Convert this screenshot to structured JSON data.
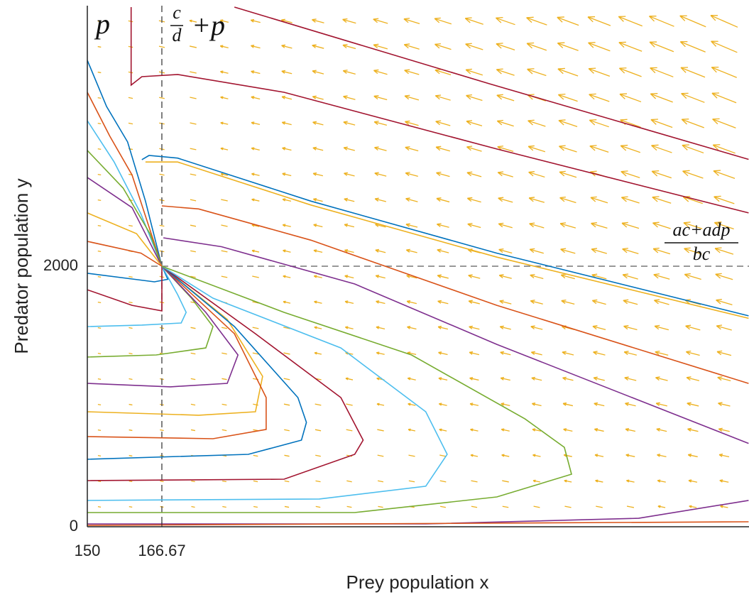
{
  "chart_data": {
    "type": "line",
    "x_label": "Prey population x",
    "y_label": "Predator population y",
    "xlim": [
      150,
      298
    ],
    "ylim": [
      0,
      4000
    ],
    "xticks": [
      150,
      166.67
    ],
    "yticks": [
      0,
      2000
    ],
    "annotations": {
      "p": "p",
      "prey_threshold": {
        "numerator": "c",
        "denominator": "d",
        "suffix": "+p"
      },
      "predator_threshold": {
        "numerator": "ac+adp",
        "denominator": "bc"
      }
    },
    "series": [
      {
        "color": "#A2142F",
        "x": [
          182.9,
          240,
          297.9
        ],
        "values": [
          3989,
          3400,
          2820
        ]
      },
      {
        "color": "#A2142F",
        "x": [
          159.8,
          159.8,
          162.2,
          170.2,
          194,
          241.6,
          297.9
        ],
        "values": [
          3989,
          3390,
          3455,
          3472,
          3335,
          2900,
          2409
        ]
      },
      {
        "color": "#0072BD",
        "x": [
          162.2,
          163.8,
          170.2,
          200,
          241.6,
          297.9
        ],
        "values": [
          2818,
          2850,
          2830,
          2500,
          2100,
          1619
        ]
      },
      {
        "color": "#EDB120",
        "x": [
          163,
          170.2,
          200,
          241.6,
          297.9
        ],
        "values": [
          2800,
          2800,
          2470,
          2070,
          1600
        ]
      },
      {
        "color": "#D95319",
        "x": [
          166.67,
          174.9,
          200,
          241.6,
          297.9
        ],
        "values": [
          2463,
          2440,
          2200,
          1700,
          1100
        ]
      },
      {
        "color": "#7E2F8E",
        "x": [
          167,
          180,
          209.8,
          241.6,
          297.9
        ],
        "values": [
          2218,
          2150,
          1864,
          1400,
          640
        ]
      },
      {
        "color": "#0072BD",
        "x": [
          150,
          154.3,
          159,
          163,
          166.67
        ],
        "values": [
          3581,
          3226,
          2954,
          2500,
          2000
        ]
      },
      {
        "color": "#D95319",
        "x": [
          150,
          155,
          160,
          166.67
        ],
        "values": [
          3335,
          3000,
          2700,
          2000
        ]
      },
      {
        "color": "#4DBEEE",
        "x": [
          150,
          156,
          162,
          166.67
        ],
        "values": [
          3117,
          2800,
          2400,
          2000
        ]
      },
      {
        "color": "#77AC30",
        "x": [
          150,
          158,
          164,
          166.67
        ],
        "values": [
          2889,
          2600,
          2250,
          2000
        ]
      },
      {
        "color": "#7E2F8E",
        "x": [
          150,
          160,
          166.67
        ],
        "values": [
          2681,
          2450,
          2000
        ]
      },
      {
        "color": "#EDB120",
        "x": [
          150,
          161,
          166.67
        ],
        "values": [
          2409,
          2250,
          2000
        ]
      },
      {
        "color": "#D95319",
        "x": [
          150,
          162,
          166.67
        ],
        "values": [
          2191,
          2100,
          2000
        ]
      },
      {
        "color": "#0072BD",
        "x": [
          150,
          165,
          168,
          166.67
        ],
        "values": [
          1946,
          1880,
          1900,
          2000
        ]
      },
      {
        "color": "#A2142F",
        "x": [
          150,
          160,
          166.67,
          166.67
        ],
        "values": [
          1819,
          1700,
          1657,
          2000
        ]
      },
      {
        "color": "#4DBEEE",
        "x": [
          150,
          162.2,
          171,
          172.1,
          170.2,
          166.67
        ],
        "values": [
          1537,
          1548,
          1564,
          1646,
          1782,
          2000
        ]
      },
      {
        "color": "#77AC30",
        "x": [
          150,
          165.4,
          176.5,
          178.1,
          173.3,
          166.67
        ],
        "values": [
          1303,
          1319,
          1373,
          1537,
          1755,
          2000
        ]
      },
      {
        "color": "#7E2F8E",
        "x": [
          150,
          168.6,
          181.3,
          183.7,
          176.5,
          166.67
        ],
        "values": [
          1101,
          1074,
          1101,
          1319,
          1646,
          2000
        ]
      },
      {
        "color": "#EDB120",
        "x": [
          150,
          174.9,
          187.6,
          189.2,
          181.3,
          166.67
        ],
        "values": [
          883,
          856,
          883,
          1155,
          1592,
          2000
        ]
      },
      {
        "color": "#D95319",
        "x": [
          150,
          178.1,
          190,
          190,
          182.9,
          166.67
        ],
        "values": [
          692,
          676,
          747,
          992,
          1482,
          2000
        ]
      },
      {
        "color": "#0072BD",
        "x": [
          150,
          186,
          197.9,
          199,
          197.1,
          182.9,
          166.67
        ],
        "values": [
          518,
          556,
          665,
          801,
          992,
          1537,
          2000
        ]
      },
      {
        "color": "#A2142F",
        "x": [
          150,
          194,
          209.8,
          211.7,
          206.7,
          187.6,
          166.67
        ],
        "values": [
          354,
          365,
          556,
          665,
          992,
          1482,
          2000
        ]
      },
      {
        "color": "#4DBEEE",
        "x": [
          150,
          201.9,
          225.7,
          230.5,
          225.7,
          206.7,
          178.1,
          166.67
        ],
        "values": [
          202,
          213,
          311,
          556,
          883,
          1373,
          1755,
          2000
        ]
      },
      {
        "color": "#77AC30",
        "x": [
          150,
          209.8,
          241.6,
          258.3,
          256.7,
          247.9,
          222.5,
          194,
          166.67
        ],
        "values": [
          109,
          109,
          229,
          403,
          610,
          828,
          1319,
          1646,
          2000
        ]
      },
      {
        "color": "#7E2F8E",
        "x": [
          150,
          225.7,
          273.3,
          297.9
        ],
        "values": [
          22,
          22,
          65,
          202
        ]
      },
      {
        "color": "#D95319",
        "x": [
          150,
          297.9
        ],
        "values": [
          11,
          38
        ]
      }
    ]
  }
}
